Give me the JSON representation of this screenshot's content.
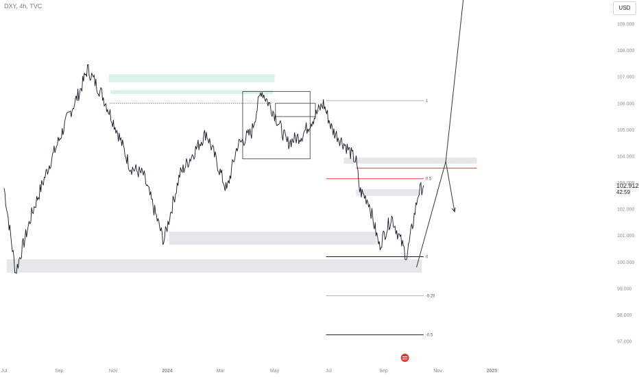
{
  "header": {
    "symbol_title": "DXY, 4h, TVC"
  },
  "toolbar": {
    "currency": "USD"
  },
  "price_scale": {
    "last_price": "102.912",
    "countdown": "42:59"
  },
  "chart_data": {
    "type": "line",
    "title": "DXY, 4h, TVC",
    "ylim": [
      96.7,
      110.0
    ],
    "y_ticks": [
      "109.000",
      "108.000",
      "107.000",
      "106.000",
      "105.000",
      "104.000",
      "103.000",
      "102.000",
      "101.000",
      "100.000",
      "99.000",
      "98.000",
      "97.000"
    ],
    "x_ticks": [
      "Jul",
      "Sep",
      "Nov",
      "2024",
      "Mar",
      "May",
      "Jul",
      "Sep",
      "Nov",
      "2025"
    ],
    "x": [
      "2023-07-01",
      "2023-07-14",
      "2023-08-01",
      "2023-08-20",
      "2023-09-10",
      "2023-09-25",
      "2023-10-03",
      "2023-10-20",
      "2023-11-05",
      "2023-11-20",
      "2023-12-05",
      "2023-12-28",
      "2024-01-15",
      "2024-02-01",
      "2024-02-14",
      "2024-03-08",
      "2024-03-20",
      "2024-04-05",
      "2024-04-16",
      "2024-05-01",
      "2024-05-15",
      "2024-06-01",
      "2024-06-25",
      "2024-07-05",
      "2024-07-20",
      "2024-08-01",
      "2024-08-05",
      "2024-08-15",
      "2024-08-27",
      "2024-09-10",
      "2024-09-27",
      "2024-10-10",
      "2024-10-16"
    ],
    "series": [
      {
        "values": [
          102.8,
          99.6,
          101.8,
          103.6,
          105.4,
          106.5,
          107.3,
          106.3,
          105.0,
          103.6,
          103.3,
          100.8,
          103.3,
          104.2,
          104.9,
          102.7,
          104.4,
          104.9,
          106.5,
          105.6,
          104.5,
          104.8,
          106.0,
          105.0,
          104.4,
          103.8,
          102.7,
          102.3,
          100.6,
          101.7,
          100.2,
          102.6,
          102.9
        ]
      }
    ],
    "fibonacci": [
      {
        "level": "1",
        "price": 106.1
      },
      {
        "level": "0.5",
        "price": 103.15
      },
      {
        "level": "0",
        "price": 100.2
      },
      {
        "level": "-0.25",
        "price": 98.72
      },
      {
        "level": "-0.5",
        "price": 97.25
      }
    ],
    "zones": [
      {
        "color": "#d9f2ea",
        "from": "2023-10-27",
        "to": "2024-05-01",
        "low": 106.8,
        "high": 107.1
      },
      {
        "color": "#d9f2ea",
        "from": "2023-10-29",
        "to": "2024-04-29",
        "low": 106.35,
        "high": 106.5
      },
      {
        "color": "#e6e7ea",
        "from": "2023-07-04",
        "to": "2024-10-14",
        "low": 99.6,
        "high": 100.1
      },
      {
        "color": "#e6e7ea",
        "from": "2024-01-03",
        "to": "2024-08-24",
        "low": 100.65,
        "high": 101.15
      },
      {
        "color": "#e6e7ea",
        "from": "2024-07-18",
        "to": "2024-12-15",
        "low": 103.72,
        "high": 103.95
      },
      {
        "color": "#e6e7ea",
        "from": "2024-08-01",
        "to": "2024-10-12",
        "low": 102.5,
        "high": 102.75
      }
    ],
    "projection": [
      {
        "x": "2024-10-08",
        "y": 99.8
      },
      {
        "x": "2024-11-10",
        "y": 103.8
      },
      {
        "x": "2024-11-20",
        "y": 101.9
      }
    ],
    "projection_up": [
      {
        "x": "2024-11-10",
        "y": 103.8
      },
      {
        "x": "2024-12-05",
        "y": 110.0
      }
    ],
    "colors": {
      "line": "#131722",
      "accent_red": "#e53935",
      "fib": "#9e9e9e"
    }
  }
}
